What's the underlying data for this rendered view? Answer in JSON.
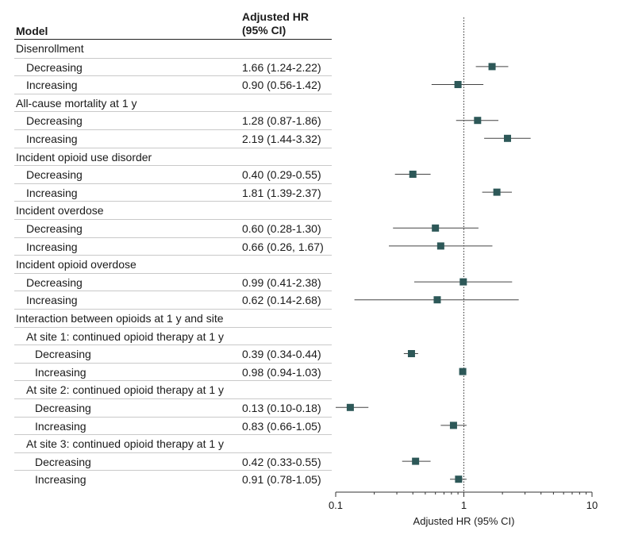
{
  "header": {
    "model": "Model",
    "hr_line1": "Adjusted HR",
    "hr_line2": "(95% CI)"
  },
  "rows": [
    {
      "label": "Disenrollment",
      "level": 0
    },
    {
      "label": "Decreasing",
      "level": 1,
      "hr_text": "1.66 (1.24-2.22)"
    },
    {
      "label": "Increasing",
      "level": 1,
      "hr_text": "0.90 (0.56-1.42)"
    },
    {
      "label": "All-cause mortality at 1 y",
      "level": 0
    },
    {
      "label": "Decreasing",
      "level": 1,
      "hr_text": "1.28 (0.87-1.86)"
    },
    {
      "label": "Increasing",
      "level": 1,
      "hr_text": "2.19 (1.44-3.32)"
    },
    {
      "label": "Incident opioid use disorder",
      "level": 0
    },
    {
      "label": "Decreasing",
      "level": 1,
      "hr_text": "0.40 (0.29-0.55)"
    },
    {
      "label": "Increasing",
      "level": 1,
      "hr_text": "1.81 (1.39-2.37)"
    },
    {
      "label": "Incident overdose",
      "level": 0
    },
    {
      "label": "Decreasing",
      "level": 1,
      "hr_text": "0.60 (0.28-1.30)"
    },
    {
      "label": "Increasing",
      "level": 1,
      "hr_text": "0.66 (0.26, 1.67)"
    },
    {
      "label": "Incident opioid overdose",
      "level": 0
    },
    {
      "label": "Decreasing",
      "level": 1,
      "hr_text": "0.99 (0.41-2.38)"
    },
    {
      "label": "Increasing",
      "level": 1,
      "hr_text": "0.62 (0.14-2.68)"
    },
    {
      "label": "Interaction between opioids at 1 y and site",
      "level": 0
    },
    {
      "label": "At site 1: continued opioid therapy at 1 y",
      "level": 1
    },
    {
      "label": "Decreasing",
      "level": 2,
      "hr_text": "0.39 (0.34-0.44)"
    },
    {
      "label": "Increasing",
      "level": 2,
      "hr_text": "0.98 (0.94-1.03)"
    },
    {
      "label": "At site 2: continued opioid therapy at 1 y",
      "level": 1
    },
    {
      "label": "Decreasing",
      "level": 2,
      "hr_text": "0.13 (0.10-0.18)"
    },
    {
      "label": "Increasing",
      "level": 2,
      "hr_text": "0.83 (0.66-1.05)"
    },
    {
      "label": "At site 3: continued opioid therapy at 1 y",
      "level": 1
    },
    {
      "label": "Decreasing",
      "level": 2,
      "hr_text": "0.42 (0.33-0.55)"
    },
    {
      "label": "Increasing",
      "level": 2,
      "hr_text": "0.91 (0.78-1.05)"
    }
  ],
  "colors": {
    "marker": "#2d5858",
    "line": "#444444",
    "ref_line": "#333333"
  },
  "chart_data": {
    "type": "scatter",
    "subtype": "forest-plot",
    "xscale": "log",
    "xlim": [
      0.1,
      10
    ],
    "xticks": [
      0.1,
      1,
      10
    ],
    "xtick_labels": [
      "0.1",
      "1",
      "10"
    ],
    "xlabel": "Adjusted HR (95% CI)",
    "reference_line": 1,
    "points": [
      {
        "row": 1,
        "hr": 1.66,
        "lo": 1.24,
        "hi": 2.22
      },
      {
        "row": 2,
        "hr": 0.9,
        "lo": 0.56,
        "hi": 1.42
      },
      {
        "row": 4,
        "hr": 1.28,
        "lo": 0.87,
        "hi": 1.86
      },
      {
        "row": 5,
        "hr": 2.19,
        "lo": 1.44,
        "hi": 3.32
      },
      {
        "row": 7,
        "hr": 0.4,
        "lo": 0.29,
        "hi": 0.55
      },
      {
        "row": 8,
        "hr": 1.81,
        "lo": 1.39,
        "hi": 2.37
      },
      {
        "row": 10,
        "hr": 0.6,
        "lo": 0.28,
        "hi": 1.3
      },
      {
        "row": 11,
        "hr": 0.66,
        "lo": 0.26,
        "hi": 1.67
      },
      {
        "row": 13,
        "hr": 0.99,
        "lo": 0.41,
        "hi": 2.38
      },
      {
        "row": 14,
        "hr": 0.62,
        "lo": 0.14,
        "hi": 2.68
      },
      {
        "row": 17,
        "hr": 0.39,
        "lo": 0.34,
        "hi": 0.44
      },
      {
        "row": 18,
        "hr": 0.98,
        "lo": 0.94,
        "hi": 1.03
      },
      {
        "row": 20,
        "hr": 0.13,
        "lo": 0.1,
        "hi": 0.18
      },
      {
        "row": 21,
        "hr": 0.83,
        "lo": 0.66,
        "hi": 1.05
      },
      {
        "row": 23,
        "hr": 0.42,
        "lo": 0.33,
        "hi": 0.55
      },
      {
        "row": 24,
        "hr": 0.91,
        "lo": 0.78,
        "hi": 1.05
      }
    ]
  }
}
